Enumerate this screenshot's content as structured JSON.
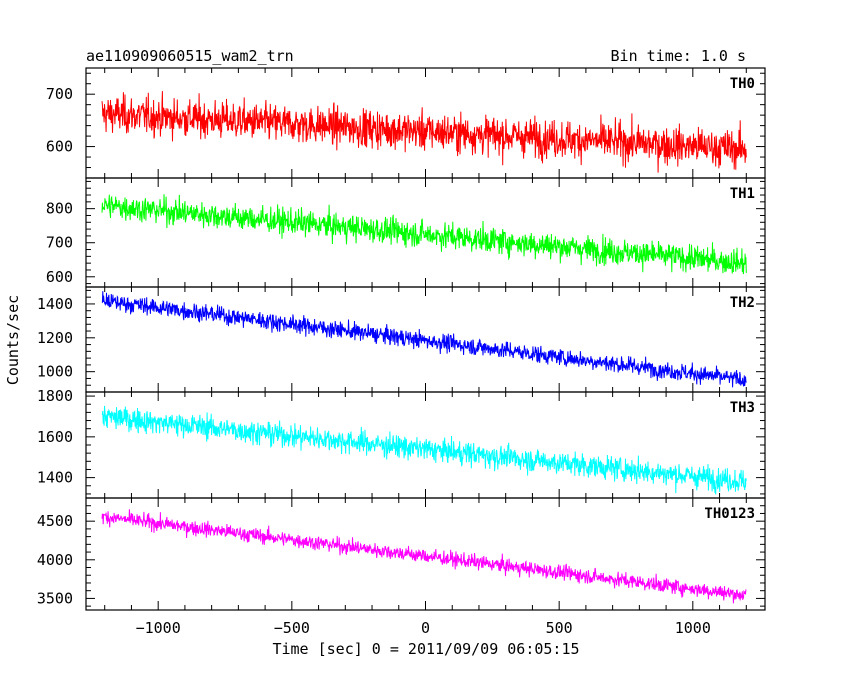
{
  "header": {
    "left_title": "ae110909060515_wam2_trn",
    "right_title": "Bin time: 1.0 s"
  },
  "chart_data": {
    "type": "line",
    "xlabel": "Time [sec] 0 = 2011/09/09 06:05:15",
    "ylabel": "Counts/sec",
    "xlim": [
      -1270,
      1270
    ],
    "x_ticks": [
      -1000,
      -500,
      0,
      500,
      1000
    ],
    "x_range": [
      -1210,
      1200
    ],
    "grid": false,
    "series": [
      {
        "name": "TH0",
        "color": "#ff0000",
        "ylim": [
          540,
          750
        ],
        "y_ticks": [
          600,
          700
        ],
        "start": 663,
        "end": 595,
        "spread": 28
      },
      {
        "name": "TH1",
        "color": "#00ff00",
        "ylim": [
          570,
          890
        ],
        "y_ticks": [
          600,
          700,
          800
        ],
        "start": 810,
        "end": 640,
        "spread": 30
      },
      {
        "name": "TH2",
        "color": "#0000ff",
        "ylim": [
          880,
          1500
        ],
        "y_ticks": [
          1000,
          1200,
          1400
        ],
        "start": 1420,
        "end": 950,
        "spread": 40
      },
      {
        "name": "TH3",
        "color": "#00ffff",
        "ylim": [
          1300,
          1820
        ],
        "y_ticks": [
          1400,
          1600,
          1800
        ],
        "start": 1700,
        "end": 1380,
        "spread": 45
      },
      {
        "name": "TH0123",
        "color": "#ff00ff",
        "ylim": [
          3350,
          4800
        ],
        "y_ticks": [
          3500,
          4000,
          4500
        ],
        "start": 4560,
        "end": 3540,
        "spread": 75
      }
    ]
  }
}
